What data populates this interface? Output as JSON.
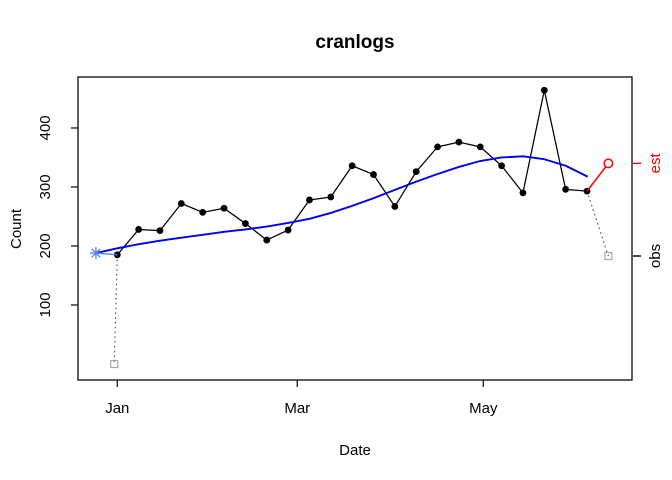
{
  "chart_data": {
    "type": "line",
    "title": "cranlogs",
    "xlabel": "Date",
    "ylabel": "Count",
    "x_axis": {
      "unit": "days-from-Jan-1",
      "tick_labels": [
        "Jan",
        "Mar",
        "May"
      ],
      "tick_days": [
        0,
        59,
        120
      ],
      "xlim_days": [
        -13,
        169
      ]
    },
    "y_axis": {
      "tick_labels": [
        "100",
        "200",
        "300",
        "400"
      ],
      "tick_values": [
        100,
        200,
        300,
        400
      ],
      "ylim": [
        -27,
        486
      ]
    },
    "grid": "off",
    "series": [
      {
        "name": "observed-counts",
        "kind": "line-with-markers",
        "marker": "filled-circle",
        "color": "#000000",
        "days": [
          0,
          7,
          14,
          21,
          28,
          35,
          42,
          49,
          56,
          63,
          70,
          77,
          84,
          91,
          98,
          105,
          112,
          119,
          126,
          133,
          140,
          147,
          154
        ],
        "values": [
          185,
          228,
          226,
          272,
          257,
          264,
          238,
          210,
          227,
          278,
          283,
          336,
          321,
          267,
          326,
          368,
          376,
          368,
          336,
          290,
          464,
          296,
          293
        ]
      },
      {
        "name": "smooth-trend",
        "kind": "line",
        "color": "#0000ee",
        "days": [
          -7,
          0,
          7,
          14,
          21,
          28,
          35,
          42,
          49,
          56,
          63,
          70,
          77,
          84,
          91,
          98,
          105,
          112,
          119,
          126,
          133,
          140,
          147,
          154
        ],
        "values": [
          188,
          196,
          203,
          209,
          214,
          219,
          224,
          228,
          233,
          239,
          246,
          256,
          268,
          281,
          295,
          309,
          322,
          334,
          344,
          350,
          352,
          347,
          336,
          318
        ]
      },
      {
        "name": "start-link",
        "kind": "line",
        "color": "#4d86f0",
        "days": [
          -7,
          0
        ],
        "values": [
          188,
          185
        ]
      },
      {
        "name": "start-marker",
        "kind": "asterisk",
        "color": "#4d86f0",
        "day": -7,
        "value": 188
      },
      {
        "name": "forecast",
        "kind": "line",
        "color": "#ff0000",
        "end_marker": "open-circle",
        "days": [
          154,
          161
        ],
        "values": [
          293,
          340
        ]
      },
      {
        "name": "partial-obs-left",
        "kind": "dotted-link",
        "line_color": "#4d4d4d",
        "marker": "open-square",
        "marker_color": "#a8a8a8",
        "days": [
          0,
          -1
        ],
        "values": [
          185,
          0
        ]
      },
      {
        "name": "partial-obs-right",
        "kind": "dotted-link",
        "line_color": "#4d4d4d",
        "marker": "open-square",
        "marker_color": "#a8a8a8",
        "days": [
          154,
          161
        ],
        "values": [
          293,
          183
        ]
      }
    ],
    "right_axis_marks": [
      {
        "label": "est",
        "value": 340,
        "color": "#ff0000"
      },
      {
        "label": "obs",
        "value": 183,
        "color": "#000000"
      }
    ]
  }
}
